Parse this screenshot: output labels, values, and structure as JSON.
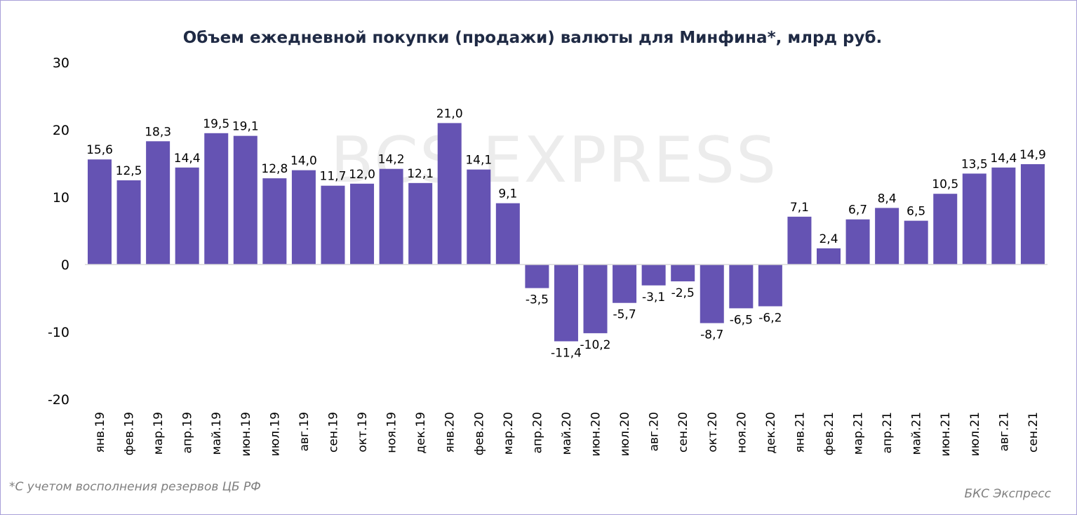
{
  "chart_data": {
    "type": "bar",
    "title": "Объем ежедневной покупки (продажи) валюты для Минфина*, млрд руб.",
    "xlabel": "",
    "ylabel": "",
    "ylim": [
      -20,
      30
    ],
    "yticks": [
      30,
      20,
      10,
      0,
      -10,
      -20
    ],
    "grid": false,
    "categories": [
      "янв.19",
      "фев.19",
      "мар.19",
      "апр.19",
      "май.19",
      "июн.19",
      "июл.19",
      "авг.19",
      "сен.19",
      "окт.19",
      "ноя.19",
      "дек.19",
      "янв.20",
      "фев.20",
      "мар.20",
      "апр.20",
      "май.20",
      "июн.20",
      "июл.20",
      "авг.20",
      "сен.20",
      "окт.20",
      "ноя.20",
      "дек.20",
      "янв.21",
      "фев.21",
      "мар.21",
      "апр.21",
      "май.21",
      "июн.21",
      "июл.21",
      "авг.21",
      "сен.21"
    ],
    "values": [
      15.6,
      12.5,
      18.3,
      14.4,
      19.5,
      19.1,
      12.8,
      14.0,
      11.7,
      12.0,
      14.2,
      12.1,
      21.0,
      14.1,
      9.1,
      -3.5,
      -11.4,
      -10.2,
      -5.7,
      -3.1,
      -2.5,
      -8.7,
      -6.5,
      -6.2,
      7.1,
      2.4,
      6.7,
      8.4,
      6.5,
      10.5,
      13.5,
      14.4,
      14.9
    ],
    "bar_color": "#6553b3",
    "footnote": "*С учетом восполнения резервов ЦБ РФ",
    "source": "БКС Экспресс",
    "watermark": "BCS EXPRESS"
  }
}
